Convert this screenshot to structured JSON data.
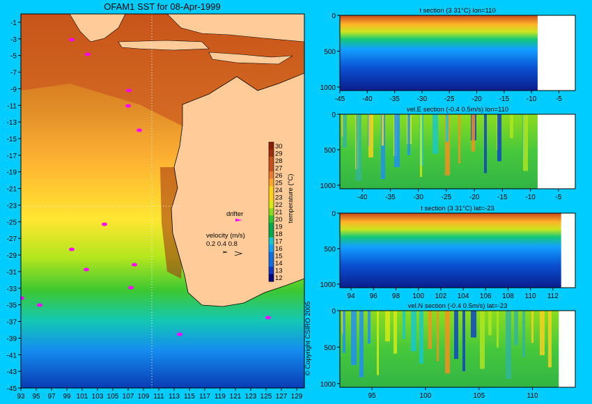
{
  "chart_data": [
    {
      "type": "heatmap",
      "title": "OFAM1 SST for 08-Apr-1999",
      "x_ticks": [
        "93",
        "95",
        "97",
        "99",
        "101",
        "103",
        "105",
        "107",
        "109",
        "111",
        "113",
        "115",
        "117",
        "119",
        "121",
        "123",
        "125",
        "127",
        "129"
      ],
      "y_ticks": [
        "-1",
        "-3",
        "-5",
        "-7",
        "-9",
        "-11",
        "-13",
        "-15",
        "-17",
        "-19",
        "-21",
        "-23",
        "-25",
        "-27",
        "-29",
        "-31",
        "-33",
        "-35",
        "-37",
        "-39",
        "-41",
        "-43",
        "-45"
      ],
      "xlim": [
        93,
        130
      ],
      "ylim": [
        -45,
        0
      ],
      "section_lines": {
        "lon": 110,
        "lat": -23
      },
      "colorbar": {
        "label": "temperature (°C)",
        "ticks": [
          "30",
          "29",
          "28",
          "27",
          "26",
          "25",
          "24",
          "23",
          "22",
          "21",
          "20",
          "19",
          "18",
          "17",
          "16",
          "15",
          "14",
          "13",
          "12"
        ]
      },
      "legend": {
        "drifter_label": "drifter",
        "velocity_label": "velocity (m/s)",
        "velocity_scale": "0.2 0.4 0.8"
      },
      "copyright": "© Copyright CSIRO 2005"
    },
    {
      "type": "heatmap",
      "title": "t section (3       31°C) lon=110",
      "x_ticks": [
        "-45",
        "-40",
        "-35",
        "-30",
        "-25",
        "-20",
        "-15",
        "-10",
        "-5"
      ],
      "y_ticks": [
        "0",
        "500",
        "1000"
      ],
      "xlim": [
        -45,
        -2
      ],
      "ylim": [
        0,
        1050
      ]
    },
    {
      "type": "heatmap",
      "title": "vel.E section (-0.4       0.5m/s) lon=110",
      "x_ticks": [
        "-40",
        "-35",
        "-30",
        "-25",
        "-20",
        "-15",
        "-10",
        "-5"
      ],
      "y_ticks": [
        "0",
        "500",
        "1000"
      ],
      "xlim": [
        -44,
        -2
      ],
      "ylim": [
        0,
        1050
      ]
    },
    {
      "type": "heatmap",
      "title": "t section (3       31°C) lat=-23",
      "x_ticks": [
        "94",
        "96",
        "98",
        "100",
        "102",
        "104",
        "106",
        "108",
        "110",
        "112"
      ],
      "y_ticks": [
        "0",
        "500",
        "1000"
      ],
      "xlim": [
        93,
        114
      ],
      "ylim": [
        0,
        1050
      ]
    },
    {
      "type": "heatmap",
      "title": "vel.N section (-0.4       0.5m/s) lat=-23",
      "x_ticks": [
        "95",
        "100",
        "105",
        "110"
      ],
      "y_ticks": [
        "0",
        "500",
        "1000"
      ],
      "xlim": [
        92,
        114
      ],
      "ylim": [
        0,
        1050
      ]
    }
  ],
  "colors": {
    "background": "#00ccff",
    "land": "#ffcc99",
    "drifter": "#ff00ff",
    "temperature_ramp": [
      "#000080",
      "#0a37c8",
      "#0e6ee6",
      "#12a0ff",
      "#14c8d2",
      "#00aa50",
      "#2dc832",
      "#8cdc1e",
      "#dceb14",
      "#ffd21e",
      "#ffa82d",
      "#eb7b32",
      "#c8501e",
      "#a02d0f",
      "#8b1e05"
    ]
  }
}
